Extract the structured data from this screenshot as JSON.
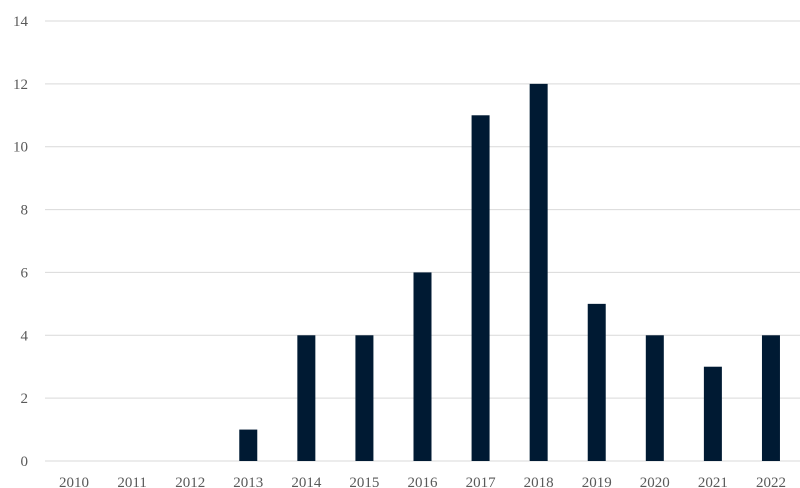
{
  "chart_data": {
    "type": "bar",
    "categories": [
      "2010",
      "2011",
      "2012",
      "2013",
      "2014",
      "2015",
      "2016",
      "2017",
      "2018",
      "2019",
      "2020",
      "2021",
      "2022"
    ],
    "values": [
      0,
      0,
      0,
      1,
      4,
      4,
      6,
      11,
      12,
      5,
      4,
      3,
      4
    ],
    "ylim": [
      0,
      14
    ],
    "yticks": [
      0,
      2,
      4,
      6,
      8,
      10,
      12,
      14
    ],
    "grid": true,
    "bar_color": "#001a33",
    "grid_color": "#d9d9d9",
    "label_color": "#595959"
  }
}
